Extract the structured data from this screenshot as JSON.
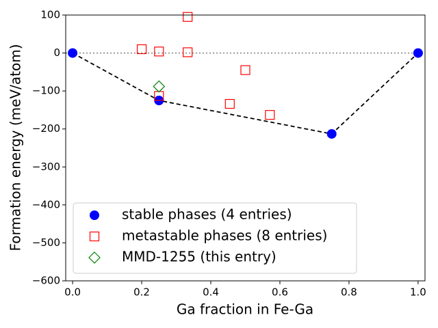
{
  "chart_data": {
    "type": "scatter",
    "x_label": "Ga fraction in Fe-Ga",
    "y_label": "Formation energy (meV/atom)",
    "xlim": [
      -0.02,
      1.02
    ],
    "ylim": [
      -600,
      100
    ],
    "xticks": [
      {
        "value": 0,
        "label": "0.0"
      },
      0.2,
      0.4,
      0.6,
      0.8,
      {
        "value": 1,
        "label": "1.0"
      }
    ],
    "yticks": [
      {
        "value": -600,
        "label": "−600"
      },
      {
        "value": -500,
        "label": "−500"
      },
      {
        "value": -400,
        "label": "−400"
      },
      {
        "value": -300,
        "label": "−300"
      },
      {
        "value": -200,
        "label": "−200"
      },
      {
        "value": -100,
        "label": "−100"
      },
      0,
      100
    ],
    "hline": 0,
    "hline_color": "#808080",
    "legend": "lower left",
    "series": [
      {
        "name": "stable phases (4 entries)",
        "color": "#0000ff",
        "marker": "circle",
        "connect": true,
        "x": [
          0,
          0.25,
          0.75,
          1
        ],
        "values": [
          0,
          -125,
          -213,
          0
        ]
      },
      {
        "name": "metastable phases (8 entries)",
        "color": "#ff0000",
        "marker": "square",
        "x": [
          0.2,
          0.25,
          0.333,
          0.333,
          0.5,
          0.25,
          0.455,
          0.571
        ],
        "values": [
          10,
          4,
          95,
          2,
          -45,
          -113,
          -134,
          -163
        ]
      },
      {
        "name": "MMD-1255 (this entry)",
        "color": "#008000",
        "marker": "diamond",
        "x": [
          0.25
        ],
        "values": [
          -88
        ]
      }
    ]
  }
}
